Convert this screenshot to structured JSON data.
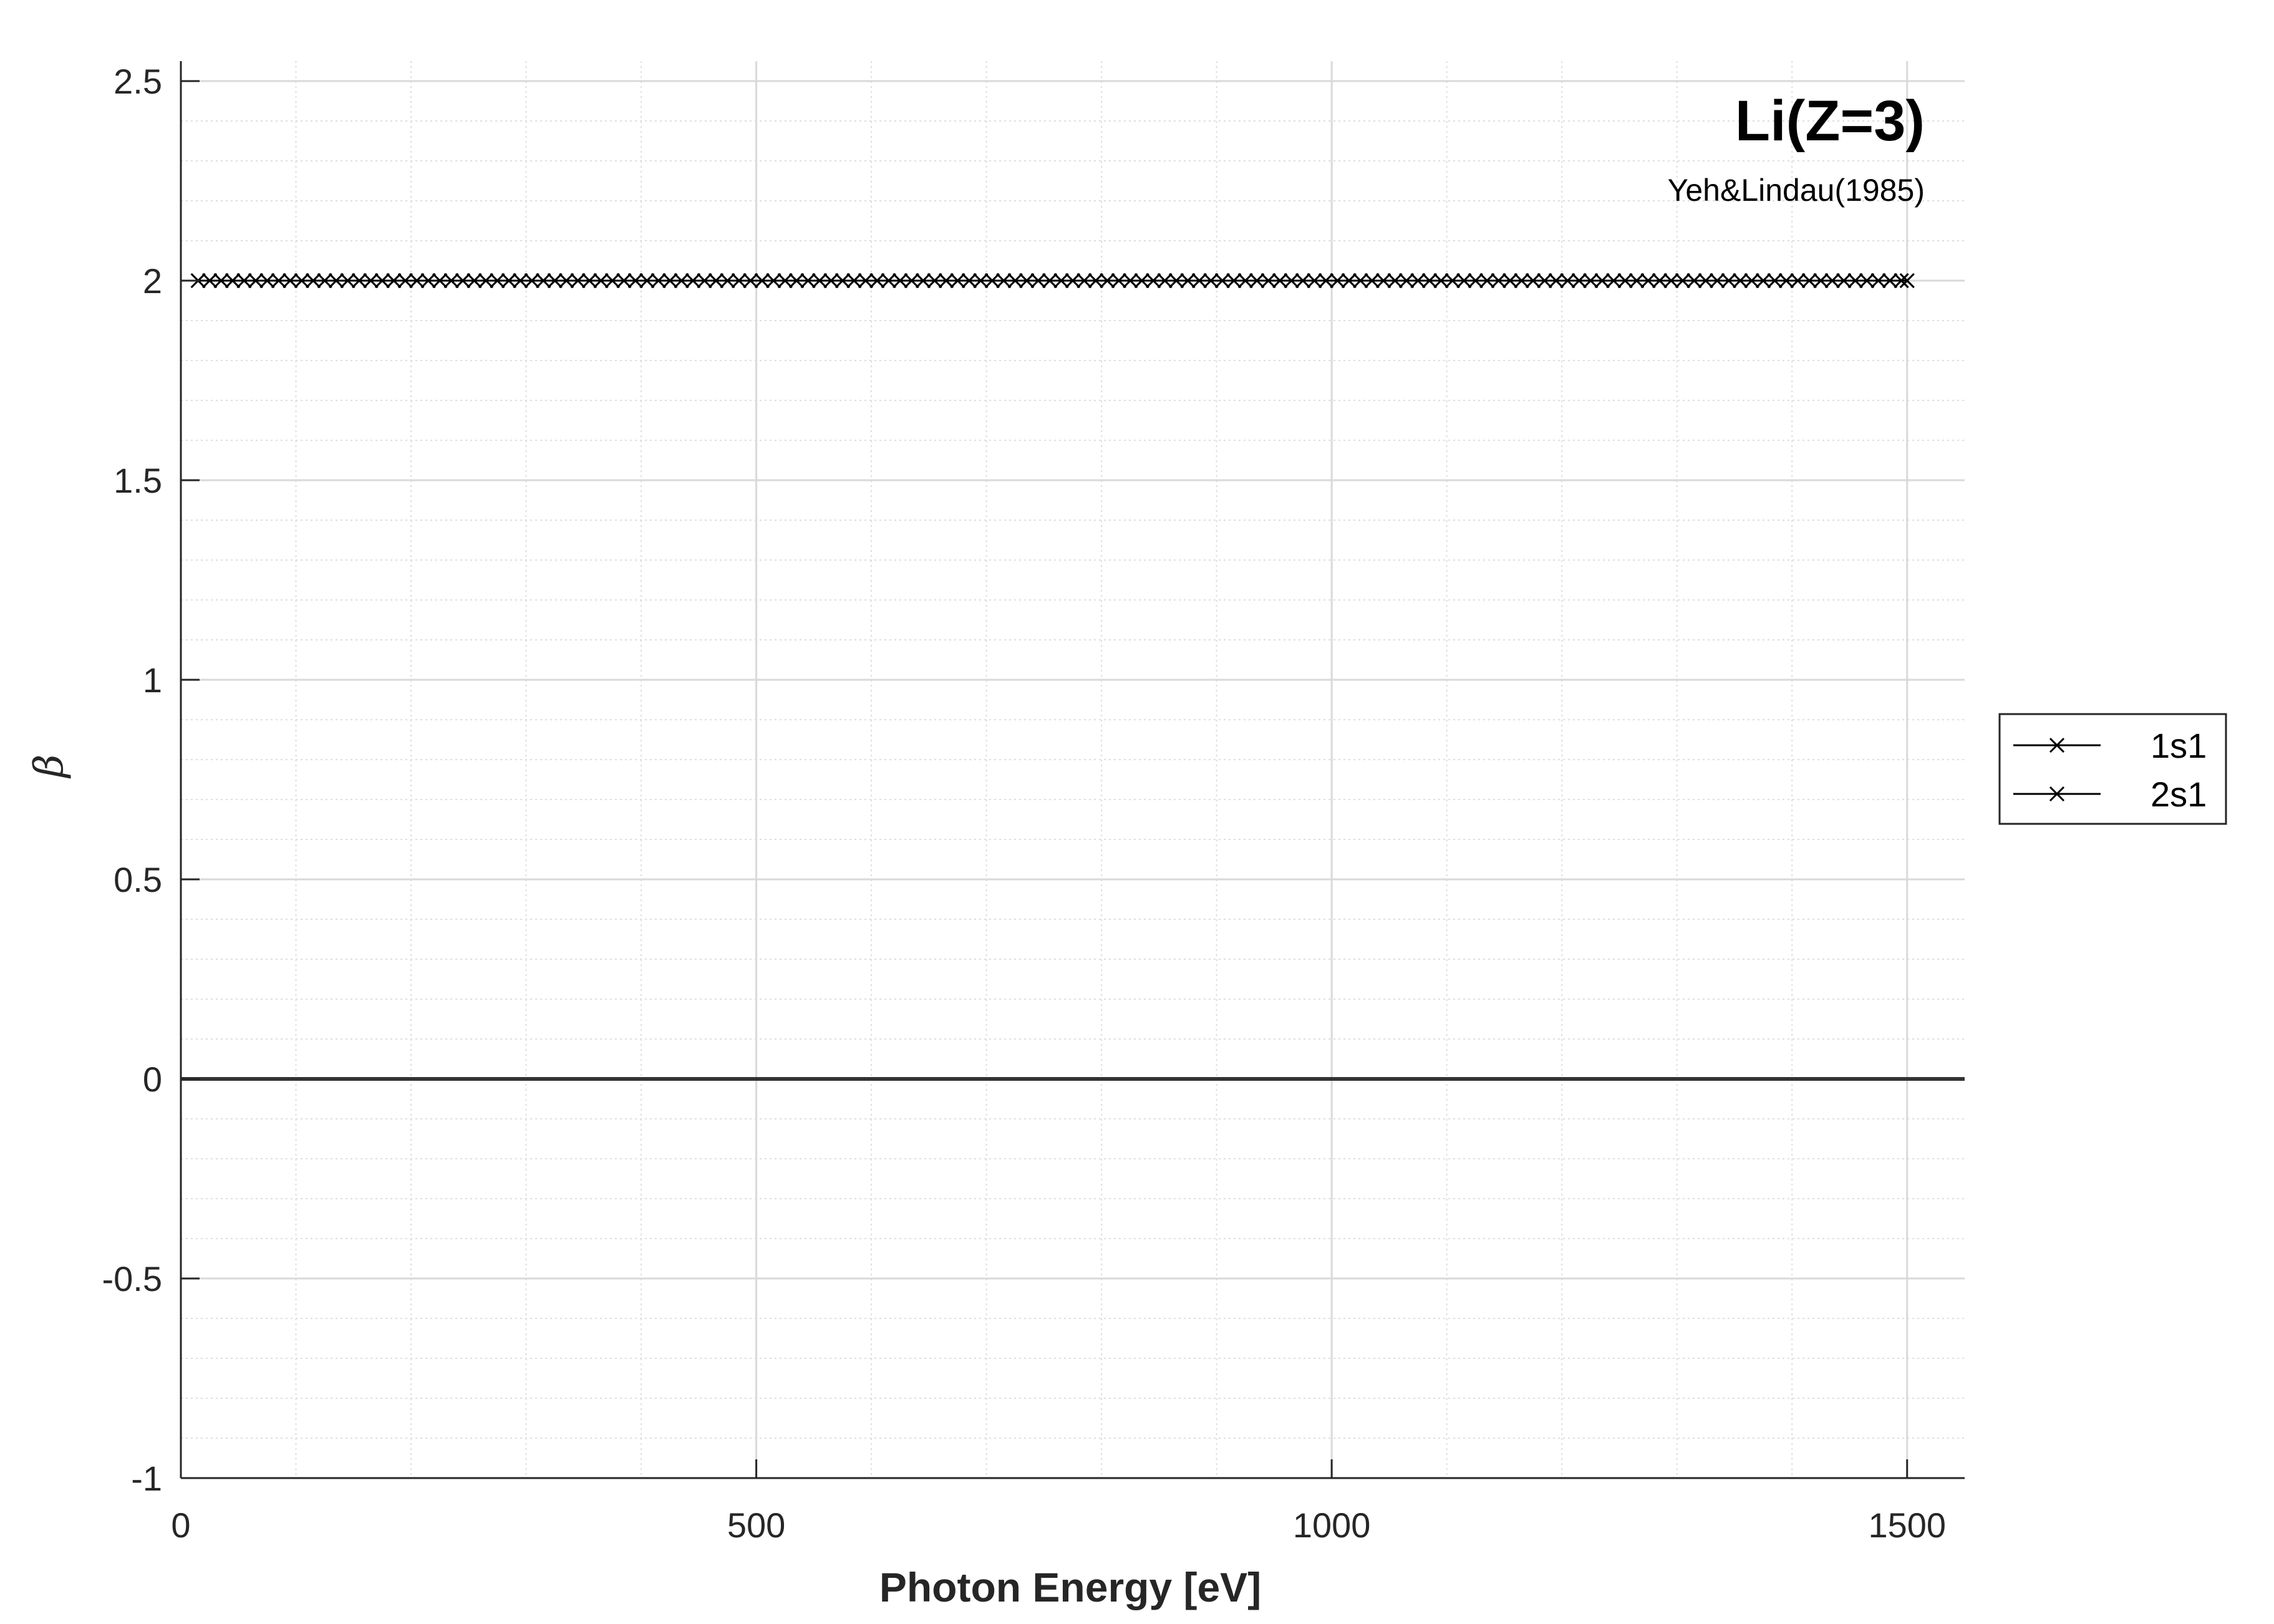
{
  "chart_data": {
    "type": "line",
    "title": "Li(Z=3)",
    "subtitle": "Yeh&Lindau(1985)",
    "xlabel": "Photon Energy [eV]",
    "ylabel": "β",
    "xlim": [
      0,
      1550
    ],
    "ylim": [
      -1,
      2.55
    ],
    "x_ticks": [
      0,
      500,
      1000,
      1500
    ],
    "x_tick_labels": [
      "0",
      "500",
      "1000",
      "1500"
    ],
    "y_ticks": [
      -1,
      -0.5,
      0,
      0.5,
      1,
      1.5,
      2,
      2.5
    ],
    "y_tick_labels": [
      "-1",
      "-0.5",
      "0",
      "0.5",
      "1",
      "1.5",
      "2",
      "2.5"
    ],
    "x_minor_step": 100,
    "y_minor_step": 0.1,
    "grid": true,
    "zero_line": true,
    "legend_position": "outside-right",
    "marker": "x",
    "colors": {
      "series": "#000000",
      "grid_major": "#d9d9d9",
      "grid_minor": "#dedede",
      "axis": "#262626"
    },
    "x_start": 15,
    "x_end": 1500,
    "x_step": 10,
    "series": [
      {
        "name": "1s1",
        "value": 2.0
      },
      {
        "name": "2s1",
        "value": 2.0
      }
    ]
  }
}
